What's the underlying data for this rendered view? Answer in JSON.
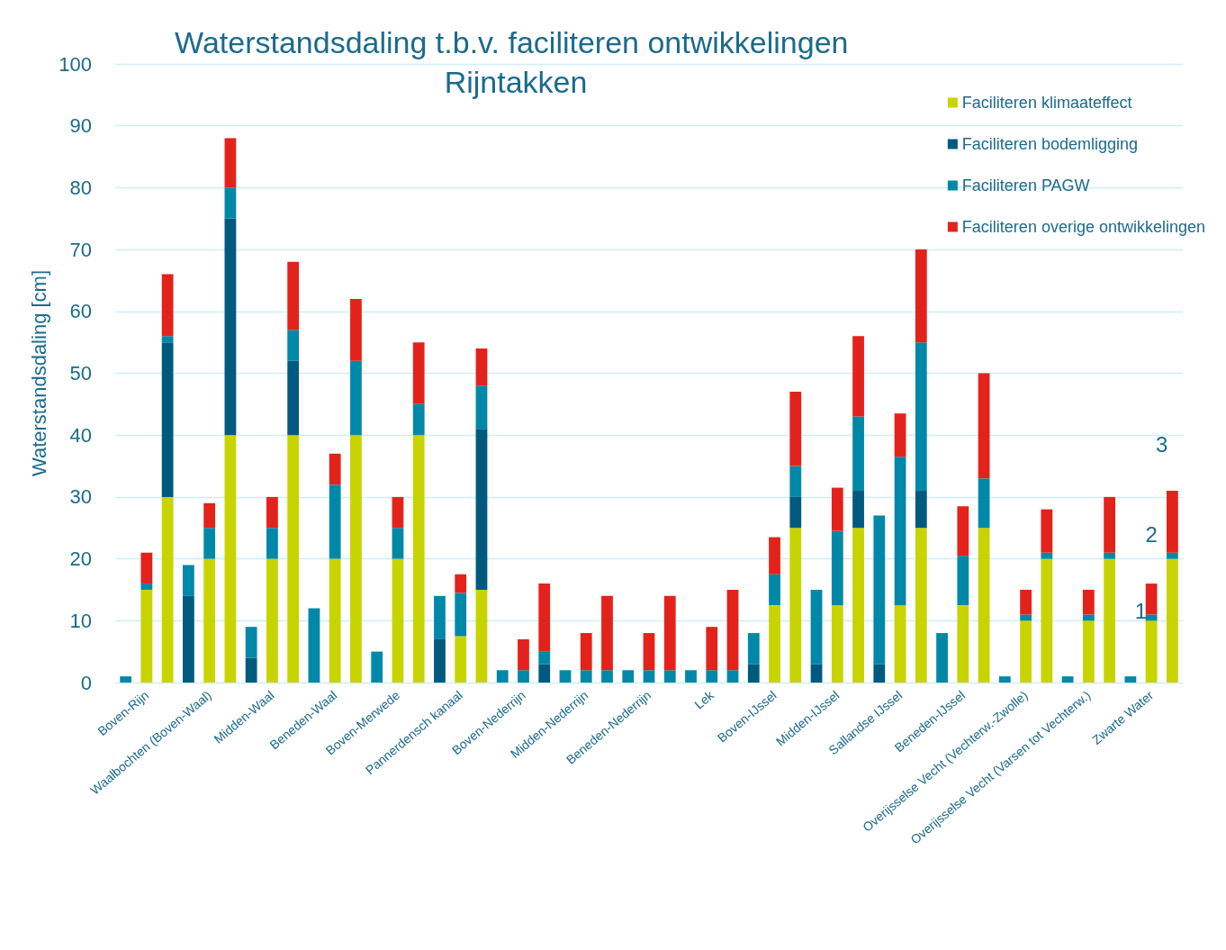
{
  "chart_data": {
    "type": "bar",
    "title": "Waterstandsdaling t.b.v. faciliteren ontwikkelingen Rijntakken",
    "ylabel": "Waterstandsdaling [cm]",
    "categories": [
      null,
      "Boven-Rijn",
      null,
      null,
      "Waalbochten (Boven-Waal)",
      null,
      null,
      "Midden-Waal",
      null,
      null,
      "Beneden-Waal",
      null,
      null,
      "Boven-Merwede",
      null,
      null,
      "Pannerdensch kanaal",
      null,
      null,
      "Boven-Nederrijn",
      null,
      null,
      "Midden-Nederrijn",
      null,
      null,
      "Beneden-Nederrijn",
      null,
      null,
      "Lek",
      null,
      null,
      "Boven-IJssel",
      null,
      null,
      "Midden-IJssel",
      null,
      null,
      "Sallandse IJssel",
      null,
      null,
      "Beneden-IJssel",
      null,
      null,
      "Overijsselse Vecht (Vechterw.-Zwolle)",
      null,
      null,
      "Overijsselse Vecht (Varsen tot Vechterw.)",
      null,
      null,
      "Zwarte Water",
      null
    ],
    "stacked": true,
    "series": [
      {
        "name": "Faciliteren klimaateffect",
        "color": "#c8d400",
        "values": [
          null,
          15,
          30,
          null,
          20,
          40,
          null,
          20,
          40,
          null,
          20,
          40,
          null,
          20,
          40,
          null,
          7.5,
          15,
          null,
          null,
          null,
          null,
          null,
          null,
          null,
          null,
          null,
          null,
          null,
          null,
          null,
          12.5,
          25,
          null,
          12.5,
          25,
          null,
          12.5,
          25,
          null,
          12.5,
          25,
          null,
          10,
          20,
          null,
          10,
          20,
          null,
          10,
          20
        ]
      },
      {
        "name": "Faciliteren bodemligging",
        "color": "#005a80",
        "values": [
          null,
          null,
          25,
          14,
          null,
          35,
          4,
          null,
          12,
          null,
          null,
          null,
          null,
          null,
          null,
          7,
          null,
          26,
          null,
          null,
          3,
          null,
          null,
          null,
          null,
          null,
          null,
          null,
          null,
          null,
          3,
          null,
          5,
          3,
          null,
          6,
          3,
          null,
          6,
          null,
          null,
          null,
          null,
          null,
          null,
          null,
          null,
          null,
          null,
          null,
          null
        ]
      },
      {
        "name": "Faciliteren PAGW",
        "color": "#0088a8",
        "values": [
          1,
          1,
          1,
          5,
          5,
          5,
          5,
          5,
          5,
          12,
          12,
          12,
          5,
          5,
          5,
          7,
          7,
          7,
          2,
          2,
          2,
          2,
          2,
          2,
          2,
          2,
          2,
          2,
          2,
          2,
          5,
          5,
          5,
          12,
          12,
          12,
          24,
          24,
          24,
          8,
          8,
          8,
          1,
          1,
          1,
          1,
          1,
          1,
          1,
          1,
          1
        ]
      },
      {
        "name": "Faciliteren overige ontwikkelingen",
        "color": "#e3231b",
        "values": [
          null,
          5,
          10,
          null,
          4,
          8,
          null,
          5,
          11,
          null,
          5,
          10,
          null,
          5,
          10,
          null,
          3,
          6,
          null,
          5,
          11,
          null,
          6,
          12,
          null,
          6,
          12,
          null,
          7,
          13,
          null,
          6,
          12,
          null,
          7,
          13,
          null,
          7,
          15,
          null,
          8,
          17,
          null,
          4,
          7,
          null,
          4,
          9,
          null,
          5,
          10
        ]
      }
    ],
    "ylim": [
      0,
      100
    ],
    "yticks": [
      0,
      10,
      20,
      30,
      40,
      50,
      60,
      70,
      80,
      90,
      100
    ],
    "grid": "y",
    "legend": "top right",
    "annotations": [
      "1",
      "2",
      "3"
    ]
  }
}
